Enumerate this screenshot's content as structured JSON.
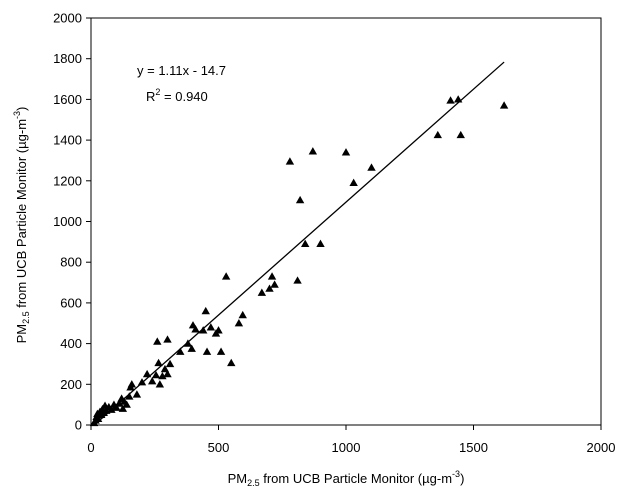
{
  "chart_data": {
    "type": "scatter",
    "xlabel": {
      "pre": "PM",
      "sub": "2.5",
      "mid": " from UCB Particle Monitor (",
      "mu": "µ",
      "unit": "g-m",
      "sup": "-3",
      "post": ")"
    },
    "ylabel": {
      "pre": "PM",
      "sub": "2.5",
      "mid": " from UCB Particle Monitor (",
      "mu": "µ",
      "unit": "g-m",
      "sup": "-3",
      "post": ")"
    },
    "xlim": [
      0,
      2000
    ],
    "ylim": [
      0,
      2000
    ],
    "x_ticks": [
      0,
      500,
      1000,
      1500,
      2000
    ],
    "y_ticks": [
      0,
      200,
      400,
      600,
      800,
      1000,
      1200,
      1400,
      1600,
      1800,
      2000
    ],
    "grid": false,
    "annotations": {
      "equation": "y = 1.11x - 14.7",
      "r2_pre": "R",
      "r2_sup": "2",
      "r2_post": " = 0.940"
    },
    "trendline": {
      "slope": 1.11,
      "intercept": -14.7,
      "x_range": [
        13,
        1620
      ]
    },
    "points": [
      [
        12,
        10
      ],
      [
        18,
        22
      ],
      [
        22,
        40
      ],
      [
        25,
        55
      ],
      [
        28,
        30
      ],
      [
        32,
        48
      ],
      [
        35,
        65
      ],
      [
        40,
        50
      ],
      [
        45,
        78
      ],
      [
        50,
        60
      ],
      [
        55,
        95
      ],
      [
        60,
        70
      ],
      [
        70,
        88
      ],
      [
        80,
        75
      ],
      [
        90,
        100
      ],
      [
        100,
        85
      ],
      [
        110,
        105
      ],
      [
        120,
        130
      ],
      [
        125,
        80
      ],
      [
        130,
        115
      ],
      [
        140,
        100
      ],
      [
        150,
        140
      ],
      [
        155,
        185
      ],
      [
        160,
        200
      ],
      [
        180,
        150
      ],
      [
        200,
        210
      ],
      [
        220,
        250
      ],
      [
        240,
        215
      ],
      [
        255,
        245
      ],
      [
        260,
        410
      ],
      [
        265,
        305
      ],
      [
        270,
        200
      ],
      [
        280,
        240
      ],
      [
        290,
        275
      ],
      [
        300,
        250
      ],
      [
        300,
        420
      ],
      [
        310,
        300
      ],
      [
        350,
        360
      ],
      [
        380,
        400
      ],
      [
        395,
        375
      ],
      [
        400,
        490
      ],
      [
        410,
        470
      ],
      [
        440,
        465
      ],
      [
        450,
        560
      ],
      [
        455,
        360
      ],
      [
        470,
        480
      ],
      [
        490,
        450
      ],
      [
        500,
        465
      ],
      [
        510,
        360
      ],
      [
        530,
        730
      ],
      [
        550,
        305
      ],
      [
        580,
        500
      ],
      [
        595,
        540
      ],
      [
        670,
        650
      ],
      [
        700,
        670
      ],
      [
        710,
        730
      ],
      [
        720,
        690
      ],
      [
        780,
        1295
      ],
      [
        810,
        710
      ],
      [
        820,
        1105
      ],
      [
        840,
        890
      ],
      [
        870,
        1345
      ],
      [
        900,
        890
      ],
      [
        1000,
        1340
      ],
      [
        1030,
        1190
      ],
      [
        1100,
        1265
      ],
      [
        1360,
        1425
      ],
      [
        1410,
        1595
      ],
      [
        1440,
        1600
      ],
      [
        1450,
        1425
      ],
      [
        1620,
        1570
      ]
    ]
  }
}
